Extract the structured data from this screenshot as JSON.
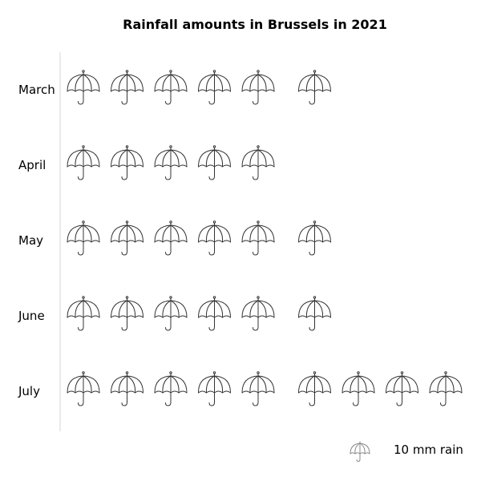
{
  "chart_data": {
    "type": "pictograph",
    "title": "Rainfall amounts in Brussels in 2021",
    "icon": "umbrella-icon",
    "unit_label": "10 mm rain",
    "unit_value": 10,
    "categories": [
      "March",
      "April",
      "May",
      "June",
      "July"
    ],
    "icon_counts": [
      6,
      5,
      6,
      6,
      9
    ],
    "values": [
      60,
      50,
      60,
      60,
      90
    ]
  }
}
